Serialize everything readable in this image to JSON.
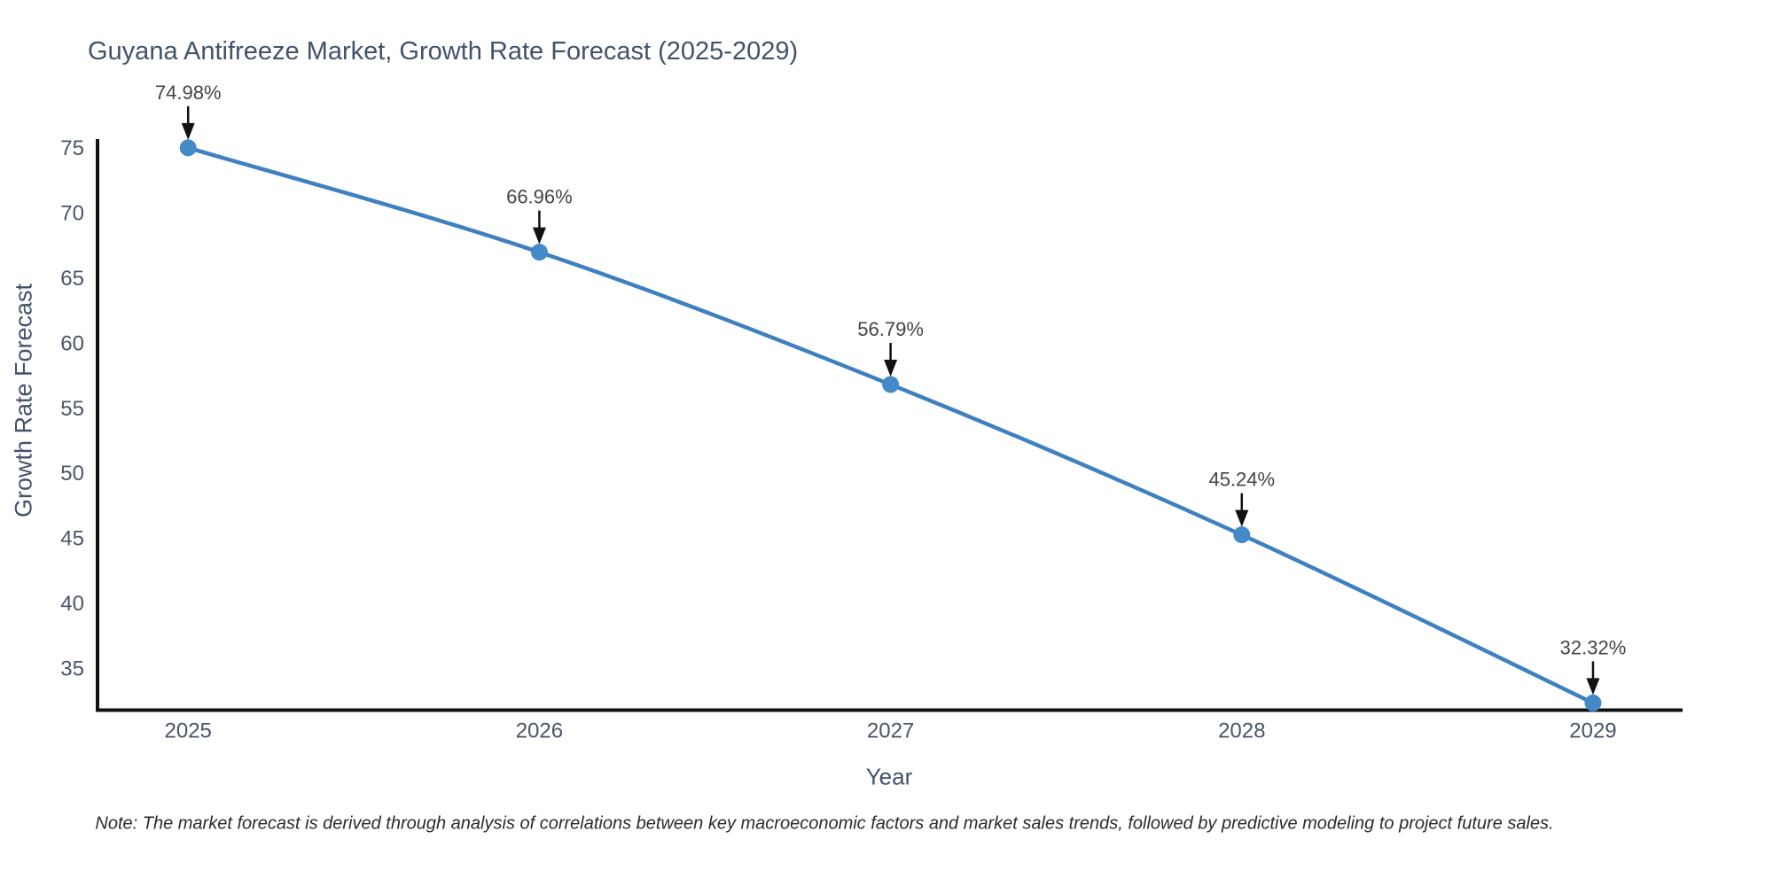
{
  "background": "#ffffff",
  "chart_data": {
    "type": "line",
    "title": "Guyana Antifreeze Market, Growth Rate Forecast (2025-2029)",
    "xlabel": "Year",
    "ylabel": "Growth Rate Forecast",
    "categories": [
      2025,
      2026,
      2027,
      2028,
      2029
    ],
    "series": [
      {
        "name": "Growth Rate Forecast",
        "values": [
          74.98,
          66.96,
          56.79,
          45.24,
          32.32
        ],
        "point_labels": [
          "74.98%",
          "66.96%",
          "56.79%",
          "45.24%",
          "32.32%"
        ]
      }
    ],
    "yticks": [
      35,
      40,
      45,
      50,
      55,
      60,
      65,
      70,
      75
    ],
    "xticks": [
      "2025",
      "2026",
      "2027",
      "2028",
      "2029"
    ],
    "ylim": [
      31.77,
      75.65
    ],
    "xlim": [
      2024.742,
      2029.255
    ],
    "grid": false,
    "legend_position": "none",
    "line_shape": "spline",
    "annotation_style": "value label with downward black arrow above each point",
    "colors": {
      "line": "#3f80c0",
      "marker": "#4489c8",
      "axis": "#111111",
      "title_text": "#42526b",
      "tick_text": "#4a5568",
      "annotation_text": "#444444",
      "note_text": "#2b2b2b"
    },
    "note": "Note: The market forecast is derived through analysis of correlations between key macroeconomic factors and market sales trends, followed by predictive modeling to project future sales."
  }
}
